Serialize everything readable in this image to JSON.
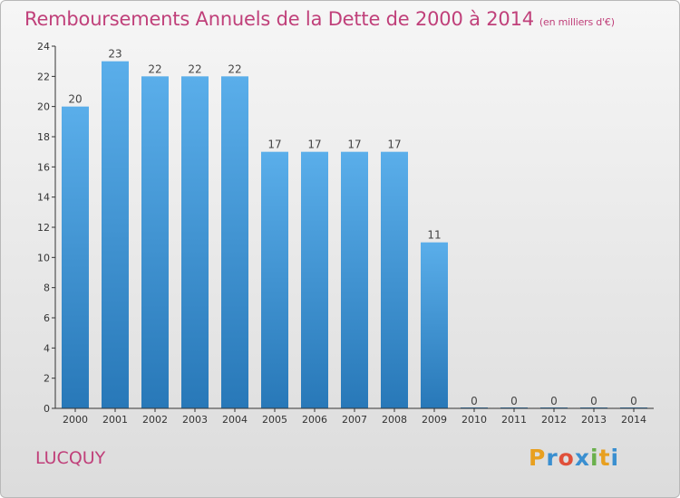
{
  "title": "Remboursements Annuels de la Dette de 2000 à 2014",
  "unit": "(en milliers d'€)",
  "commune": "LUCQUY",
  "logo": {
    "text": "Proxiti",
    "letters": [
      {
        "char": "P",
        "color": "#e8a020"
      },
      {
        "char": "r",
        "color": "#3a8fd0"
      },
      {
        "char": "o",
        "color": "#e0503a"
      },
      {
        "char": "x",
        "color": "#3a8fd0"
      },
      {
        "char": "i",
        "color": "#6ab04c"
      },
      {
        "char": "t",
        "color": "#e8a020"
      },
      {
        "char": "i",
        "color": "#3a8fd0"
      }
    ]
  },
  "colors": {
    "bar_top": "#5aaeea",
    "bar_bottom": "#2878b8",
    "axis": "#333333",
    "title": "#c0407a"
  },
  "chart_data": {
    "type": "bar",
    "title": "Remboursements Annuels de la Dette de 2000 à 2014",
    "xlabel": "",
    "ylabel": "",
    "ylim": [
      0,
      24
    ],
    "yticks": [
      0,
      2,
      4,
      6,
      8,
      10,
      12,
      14,
      16,
      18,
      20,
      22,
      24
    ],
    "grid": false,
    "categories": [
      "2000",
      "2001",
      "2002",
      "2003",
      "2004",
      "2005",
      "2006",
      "2007",
      "2008",
      "2009",
      "2010",
      "2011",
      "2012",
      "2013",
      "2014"
    ],
    "values": [
      20,
      23,
      22,
      22,
      22,
      17,
      17,
      17,
      17,
      11,
      0,
      0,
      0,
      0,
      0
    ]
  }
}
